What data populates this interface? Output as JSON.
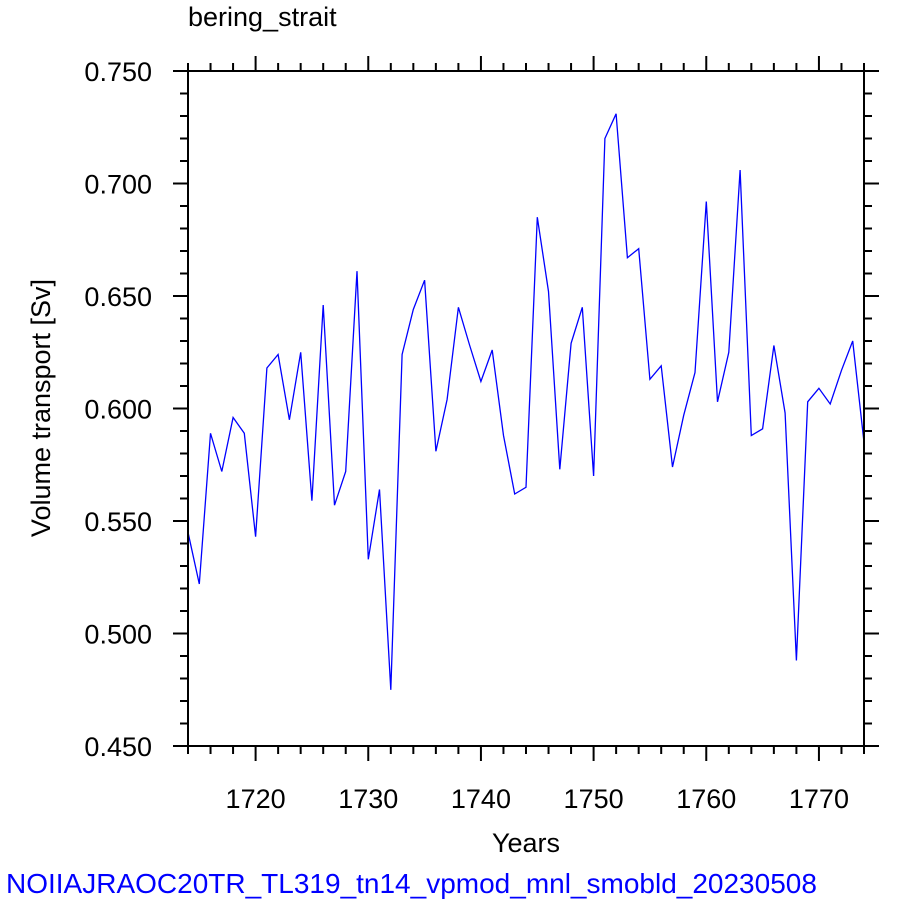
{
  "chart_data": {
    "type": "line",
    "title": "bering_strait",
    "xlabel": "Years",
    "ylabel": "Volume transport [Sv]",
    "xlim": [
      1714,
      1774
    ],
    "ylim": [
      0.45,
      0.75
    ],
    "xticks": [
      1720,
      1730,
      1740,
      1750,
      1760,
      1770
    ],
    "yticks": [
      "0.450",
      "0.500",
      "0.550",
      "0.600",
      "0.650",
      "0.700",
      "0.750"
    ],
    "series": [
      {
        "color": "#0000ff",
        "x": [
          1714,
          1715,
          1716,
          1717,
          1718,
          1719,
          1720,
          1721,
          1722,
          1723,
          1724,
          1725,
          1726,
          1727,
          1728,
          1729,
          1730,
          1731,
          1732,
          1733,
          1734,
          1735,
          1736,
          1737,
          1738,
          1739,
          1740,
          1741,
          1742,
          1743,
          1744,
          1745,
          1746,
          1747,
          1748,
          1749,
          1750,
          1751,
          1752,
          1753,
          1754,
          1755,
          1756,
          1757,
          1758,
          1759,
          1760,
          1761,
          1762,
          1763,
          1764,
          1765,
          1766,
          1767,
          1768,
          1769,
          1770,
          1771,
          1772,
          1773,
          1774
        ],
        "y": [
          0.545,
          0.522,
          0.589,
          0.572,
          0.596,
          0.589,
          0.543,
          0.618,
          0.624,
          0.595,
          0.625,
          0.559,
          0.646,
          0.557,
          0.572,
          0.661,
          0.533,
          0.564,
          0.475,
          0.624,
          0.644,
          0.657,
          0.581,
          0.604,
          0.645,
          0.628,
          0.612,
          0.626,
          0.588,
          0.562,
          0.565,
          0.685,
          0.652,
          0.573,
          0.629,
          0.645,
          0.57,
          0.72,
          0.731,
          0.667,
          0.671,
          0.613,
          0.619,
          0.574,
          0.597,
          0.616,
          0.692,
          0.603,
          0.625,
          0.706,
          0.588,
          0.591,
          0.628,
          0.598,
          0.488,
          0.603,
          0.609,
          0.602,
          0.617,
          0.63,
          0.585
        ]
      }
    ]
  },
  "footer": "NOIIAJRAOC20TR_TL319_tn14_vpmod_mnl_smobld_20230508"
}
